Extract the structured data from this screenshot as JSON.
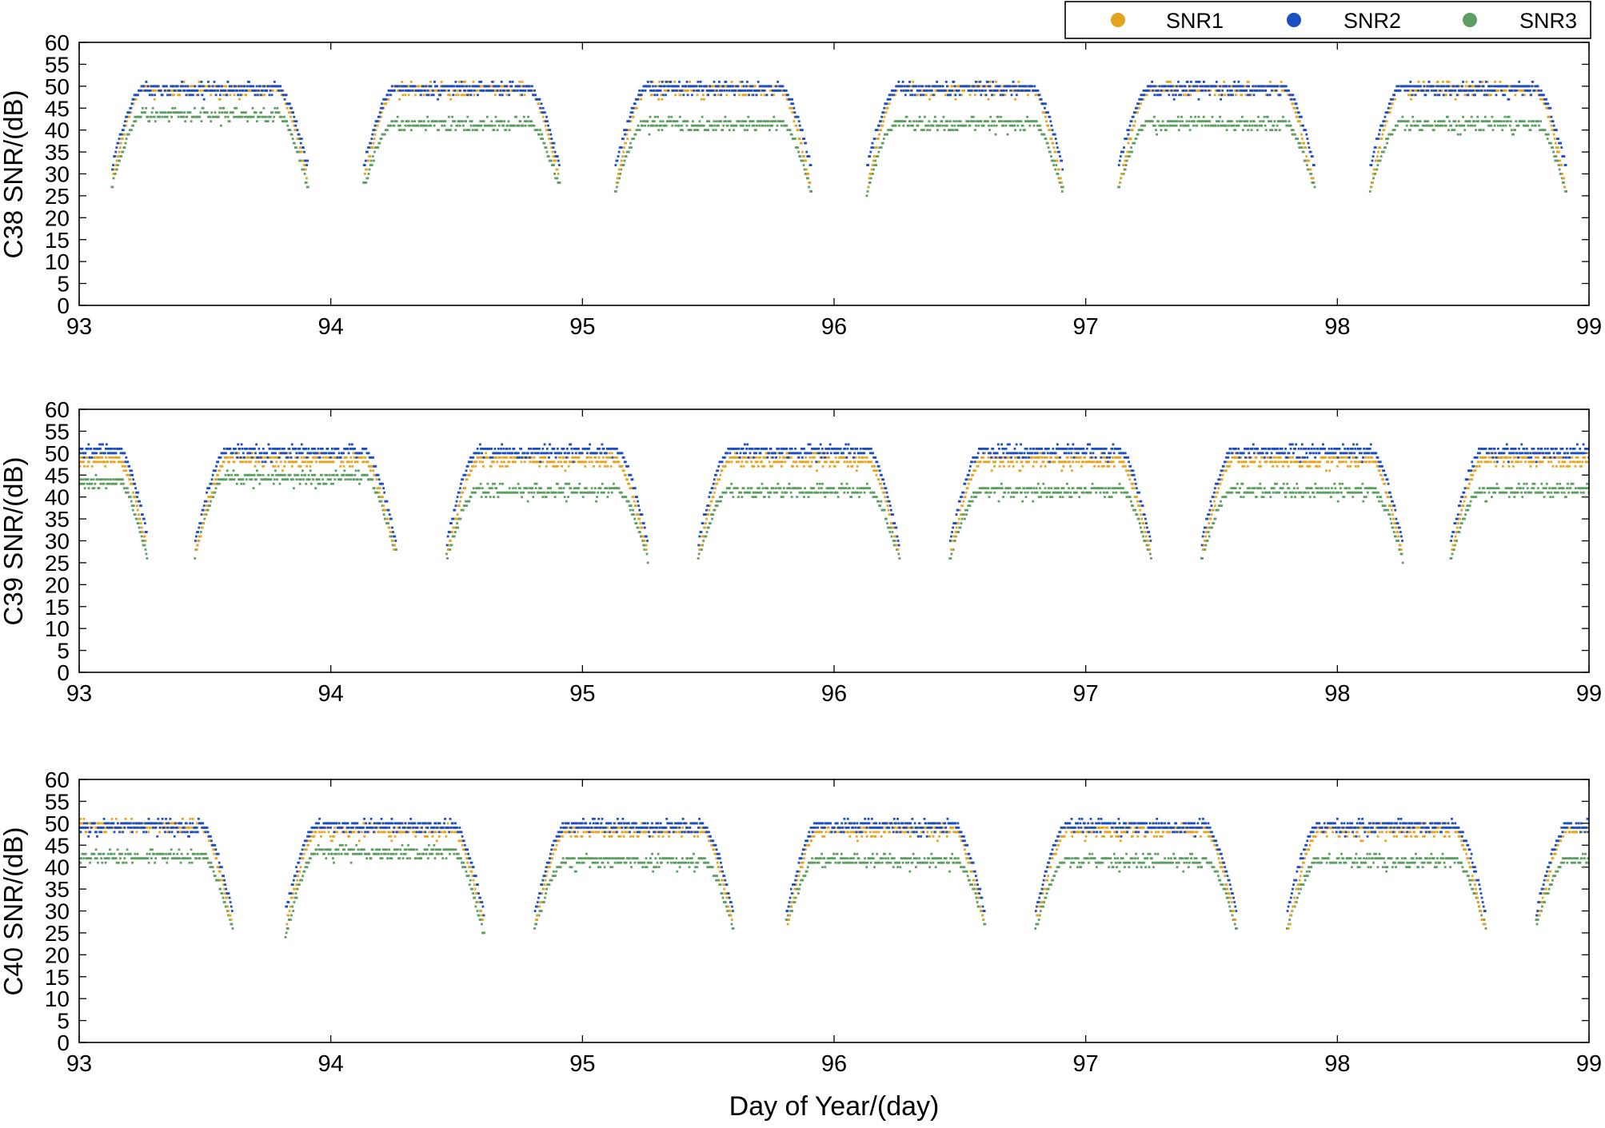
{
  "legend": {
    "placement": "top-right",
    "entries": [
      {
        "label": "SNR1",
        "color": "#E6A41E"
      },
      {
        "label": "SNR2",
        "color": "#1D4FC4"
      },
      {
        "label": "SNR3",
        "color": "#5F9E63"
      }
    ]
  },
  "xlabel": "Day of Year/(day)",
  "chart_data": [
    {
      "type": "scatter",
      "ylabel": "C38 SNR/(dB)",
      "xlim": [
        93,
        99
      ],
      "ylim": [
        0,
        60
      ],
      "xticks": [
        93,
        94,
        95,
        96,
        97,
        98,
        99
      ],
      "yticks": [
        0,
        5,
        10,
        15,
        20,
        25,
        30,
        35,
        40,
        45,
        50,
        55,
        60
      ],
      "grid": false,
      "passes": [
        {
          "start": 93.13,
          "end": 93.91,
          "peak": {
            "SNR1": 50,
            "SNR2": 50,
            "SNR3": 44
          },
          "low": {
            "SNR1": 30,
            "SNR2": 32,
            "SNR3": 27
          }
        },
        {
          "start": 94.13,
          "end": 94.91,
          "peak": {
            "SNR1": 50,
            "SNR2": 50,
            "SNR3": 42
          },
          "low": {
            "SNR1": 30,
            "SNR2": 32,
            "SNR3": 27
          }
        },
        {
          "start": 95.13,
          "end": 95.91,
          "peak": {
            "SNR1": 50,
            "SNR2": 50,
            "SNR3": 42
          },
          "low": {
            "SNR1": 28,
            "SNR2": 32,
            "SNR3": 26
          }
        },
        {
          "start": 96.13,
          "end": 96.91,
          "peak": {
            "SNR1": 50,
            "SNR2": 50,
            "SNR3": 42
          },
          "low": {
            "SNR1": 28,
            "SNR2": 32,
            "SNR3": 26
          }
        },
        {
          "start": 97.13,
          "end": 97.91,
          "peak": {
            "SNR1": 50,
            "SNR2": 50,
            "SNR3": 42
          },
          "low": {
            "SNR1": 28,
            "SNR2": 32,
            "SNR3": 27
          }
        },
        {
          "start": 98.13,
          "end": 98.91,
          "peak": {
            "SNR1": 50,
            "SNR2": 50,
            "SNR3": 42
          },
          "low": {
            "SNR1": 28,
            "SNR2": 32,
            "SNR3": 26
          }
        }
      ]
    },
    {
      "type": "scatter",
      "ylabel": "C39 SNR/(dB)",
      "xlim": [
        93,
        99
      ],
      "ylim": [
        0,
        60
      ],
      "xticks": [
        93,
        94,
        95,
        96,
        97,
        98,
        99
      ],
      "yticks": [
        0,
        5,
        10,
        15,
        20,
        25,
        30,
        35,
        40,
        45,
        50,
        55,
        60
      ],
      "grid": false,
      "passes": [
        {
          "start": 92.55,
          "end": 93.27,
          "peak": {
            "SNR1": 49,
            "SNR2": 51,
            "SNR3": 44
          },
          "low": {
            "SNR1": 30,
            "SNR2": 32,
            "SNR3": 26
          }
        },
        {
          "start": 93.46,
          "end": 94.26,
          "peak": {
            "SNR1": 49,
            "SNR2": 51,
            "SNR3": 45
          },
          "low": {
            "SNR1": 28,
            "SNR2": 30,
            "SNR3": 27
          }
        },
        {
          "start": 94.46,
          "end": 95.26,
          "peak": {
            "SNR1": 49,
            "SNR2": 51,
            "SNR3": 42
          },
          "low": {
            "SNR1": 28,
            "SNR2": 30,
            "SNR3": 26
          }
        },
        {
          "start": 95.46,
          "end": 96.26,
          "peak": {
            "SNR1": 49,
            "SNR2": 51,
            "SNR3": 42
          },
          "low": {
            "SNR1": 28,
            "SNR2": 30,
            "SNR3": 26
          }
        },
        {
          "start": 96.46,
          "end": 97.26,
          "peak": {
            "SNR1": 49,
            "SNR2": 51,
            "SNR3": 42
          },
          "low": {
            "SNR1": 28,
            "SNR2": 30,
            "SNR3": 26
          }
        },
        {
          "start": 97.46,
          "end": 98.26,
          "peak": {
            "SNR1": 49,
            "SNR2": 51,
            "SNR3": 42
          },
          "low": {
            "SNR1": 28,
            "SNR2": 30,
            "SNR3": 26
          }
        },
        {
          "start": 98.45,
          "end": 99.25,
          "peak": {
            "SNR1": 49,
            "SNR2": 51,
            "SNR3": 42
          },
          "low": {
            "SNR1": 28,
            "SNR2": 30,
            "SNR3": 26
          }
        }
      ]
    },
    {
      "type": "scatter",
      "ylabel": "C40 SNR/(dB)",
      "xlim": [
        93,
        99
      ],
      "ylim": [
        0,
        60
      ],
      "xticks": [
        93,
        94,
        95,
        96,
        97,
        98,
        99
      ],
      "yticks": [
        0,
        5,
        10,
        15,
        20,
        25,
        30,
        35,
        40,
        45,
        50,
        55,
        60
      ],
      "grid": false,
      "passes": [
        {
          "start": 92.82,
          "end": 93.61,
          "peak": {
            "SNR1": 50,
            "SNR2": 50,
            "SNR3": 43
          },
          "low": {
            "SNR1": 28,
            "SNR2": 30,
            "SNR3": 26
          }
        },
        {
          "start": 93.82,
          "end": 94.61,
          "peak": {
            "SNR1": 49,
            "SNR2": 50,
            "SNR3": 44
          },
          "low": {
            "SNR1": 28,
            "SNR2": 30,
            "SNR3": 24
          }
        },
        {
          "start": 94.81,
          "end": 95.6,
          "peak": {
            "SNR1": 49,
            "SNR2": 50,
            "SNR3": 42
          },
          "low": {
            "SNR1": 28,
            "SNR2": 30,
            "SNR3": 26
          }
        },
        {
          "start": 95.81,
          "end": 96.6,
          "peak": {
            "SNR1": 49,
            "SNR2": 50,
            "SNR3": 42
          },
          "low": {
            "SNR1": 28,
            "SNR2": 30,
            "SNR3": 27
          }
        },
        {
          "start": 96.8,
          "end": 97.6,
          "peak": {
            "SNR1": 49,
            "SNR2": 50,
            "SNR3": 42
          },
          "low": {
            "SNR1": 28,
            "SNR2": 30,
            "SNR3": 26
          }
        },
        {
          "start": 97.8,
          "end": 98.59,
          "peak": {
            "SNR1": 49,
            "SNR2": 50,
            "SNR3": 42
          },
          "low": {
            "SNR1": 26,
            "SNR2": 30,
            "SNR3": 26
          }
        },
        {
          "start": 98.79,
          "end": 99.58,
          "peak": {
            "SNR1": 49,
            "SNR2": 50,
            "SNR3": 42
          },
          "low": {
            "SNR1": 28,
            "SNR2": 30,
            "SNR3": 27
          }
        }
      ]
    }
  ]
}
